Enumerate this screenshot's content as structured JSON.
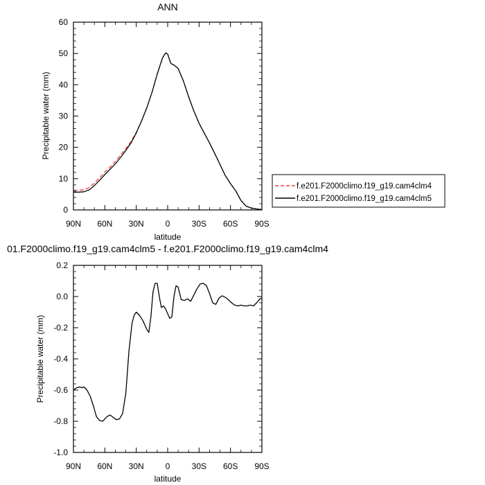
{
  "chart_data": [
    {
      "type": "line",
      "title": "ANN",
      "xlabel": "latitude",
      "ylabel": "Precipitable water (mm)",
      "xlim": [
        90,
        -90
      ],
      "ylim": [
        0,
        60
      ],
      "yticks": [
        0,
        10,
        20,
        30,
        40,
        50,
        60
      ],
      "xticks": [
        {
          "v": 90,
          "label": "90N"
        },
        {
          "v": 60,
          "label": "60N"
        },
        {
          "v": 30,
          "label": "30N"
        },
        {
          "v": 0,
          "label": "0"
        },
        {
          "v": -30,
          "label": "30S"
        },
        {
          "v": -60,
          "label": "60S"
        },
        {
          "v": -90,
          "label": "90S"
        }
      ],
      "legend_position": "right",
      "series": [
        {
          "name": "f.e201.F2000climo.f19_g19.cam4clm4",
          "color": "#e8403c",
          "dash": "dashed",
          "x": [
            90,
            85,
            80,
            75,
            70,
            65,
            60,
            55,
            50,
            45,
            40,
            35,
            30,
            25,
            20,
            15,
            10,
            5,
            2,
            0,
            -3,
            -6,
            -10,
            -15,
            -20,
            -25,
            -30,
            -35,
            -40,
            -45,
            -50,
            -55,
            -60,
            -65,
            -70,
            -75,
            -80,
            -85,
            -90
          ],
          "y": [
            6.3,
            6.3,
            6.4,
            7.2,
            8.6,
            10.3,
            12.1,
            13.7,
            15.5,
            17.6,
            19.6,
            21.9,
            24.8,
            28.4,
            32.6,
            37.5,
            43.4,
            48.5,
            50.2,
            49.8,
            46.8,
            46.3,
            45.2,
            41.2,
            36.2,
            31.6,
            27.7,
            24.5,
            21.4,
            18.0,
            14.5,
            11.0,
            8.4,
            6.1,
            3.0,
            1.2,
            0.6,
            0.3,
            0.1
          ]
        },
        {
          "name": "f.e201.F2000climo.f19_g19.cam4clm5",
          "color": "#000000",
          "dash": "solid",
          "x": [
            90,
            85,
            80,
            75,
            70,
            65,
            60,
            55,
            50,
            45,
            40,
            35,
            30,
            25,
            20,
            15,
            10,
            5,
            2,
            0,
            -3,
            -6,
            -10,
            -15,
            -20,
            -25,
            -30,
            -35,
            -40,
            -45,
            -50,
            -55,
            -60,
            -65,
            -70,
            -75,
            -80,
            -85,
            -90
          ],
          "y": [
            5.7,
            5.7,
            5.8,
            6.4,
            7.8,
            9.5,
            11.3,
            13.0,
            14.7,
            16.8,
            19.0,
            21.4,
            24.6,
            28.4,
            32.6,
            37.5,
            43.4,
            48.5,
            50.2,
            49.8,
            46.8,
            46.3,
            45.2,
            41.2,
            36.2,
            31.6,
            27.7,
            24.5,
            21.4,
            18.0,
            14.5,
            11.0,
            8.4,
            6.1,
            3.0,
            1.2,
            0.6,
            0.3,
            0.1
          ]
        }
      ]
    },
    {
      "type": "line",
      "title": "01.F2000climo.f19_g19.cam4clm5 - f.e201.F2000climo.f19_g19.cam4clm4",
      "xlabel": "latitude",
      "ylabel": "Precipitable water (mm)",
      "xlim": [
        90,
        -90
      ],
      "ylim": [
        -1.0,
        0.2
      ],
      "yticks": [
        -1.0,
        -0.8,
        -0.6,
        -0.4,
        -0.2,
        0.0,
        0.2
      ],
      "ytick_labels": [
        "-1.0",
        "-0.8",
        "-0.6",
        "-0.4",
        "-0.2",
        "0.0",
        "0.2"
      ],
      "xticks": [
        {
          "v": 90,
          "label": "90N"
        },
        {
          "v": 60,
          "label": "60N"
        },
        {
          "v": 30,
          "label": "30N"
        },
        {
          "v": 0,
          "label": "0"
        },
        {
          "v": -30,
          "label": "30S"
        },
        {
          "v": -60,
          "label": "60S"
        },
        {
          "v": -90,
          "label": "90S"
        }
      ],
      "series": [
        {
          "color": "#000000",
          "dash": "solid",
          "x": [
            90,
            87,
            84,
            82,
            80,
            77,
            74,
            71,
            68,
            65,
            62,
            60,
            58,
            55,
            52,
            49,
            46,
            43,
            40,
            37,
            34,
            32,
            30,
            27,
            24,
            22,
            20,
            18,
            16,
            14,
            12,
            10,
            8,
            6,
            4,
            2,
            0,
            -2,
            -4,
            -6,
            -8,
            -10,
            -13,
            -16,
            -19,
            -22,
            -25,
            -28,
            -31,
            -34,
            -37,
            -40,
            -43,
            -46,
            -49,
            -52,
            -55,
            -58,
            -61,
            -64,
            -67,
            -70,
            -73,
            -76,
            -79,
            -82,
            -85,
            -88,
            -90
          ],
          "y": [
            -0.6,
            -0.585,
            -0.58,
            -0.585,
            -0.58,
            -0.6,
            -0.64,
            -0.7,
            -0.77,
            -0.795,
            -0.8,
            -0.785,
            -0.77,
            -0.76,
            -0.775,
            -0.79,
            -0.785,
            -0.75,
            -0.62,
            -0.35,
            -0.17,
            -0.12,
            -0.1,
            -0.12,
            -0.15,
            -0.18,
            -0.21,
            -0.23,
            -0.13,
            0.03,
            0.085,
            0.085,
            0.0,
            -0.07,
            -0.06,
            -0.08,
            -0.11,
            -0.14,
            -0.13,
            0.0,
            0.07,
            0.06,
            -0.02,
            -0.025,
            -0.015,
            -0.03,
            0.01,
            0.05,
            0.08,
            0.085,
            0.07,
            0.02,
            -0.04,
            -0.05,
            -0.01,
            0.005,
            -0.005,
            -0.02,
            -0.04,
            -0.055,
            -0.06,
            -0.055,
            -0.06,
            -0.06,
            -0.055,
            -0.06,
            -0.04,
            -0.015,
            -0.01
          ]
        }
      ]
    }
  ]
}
